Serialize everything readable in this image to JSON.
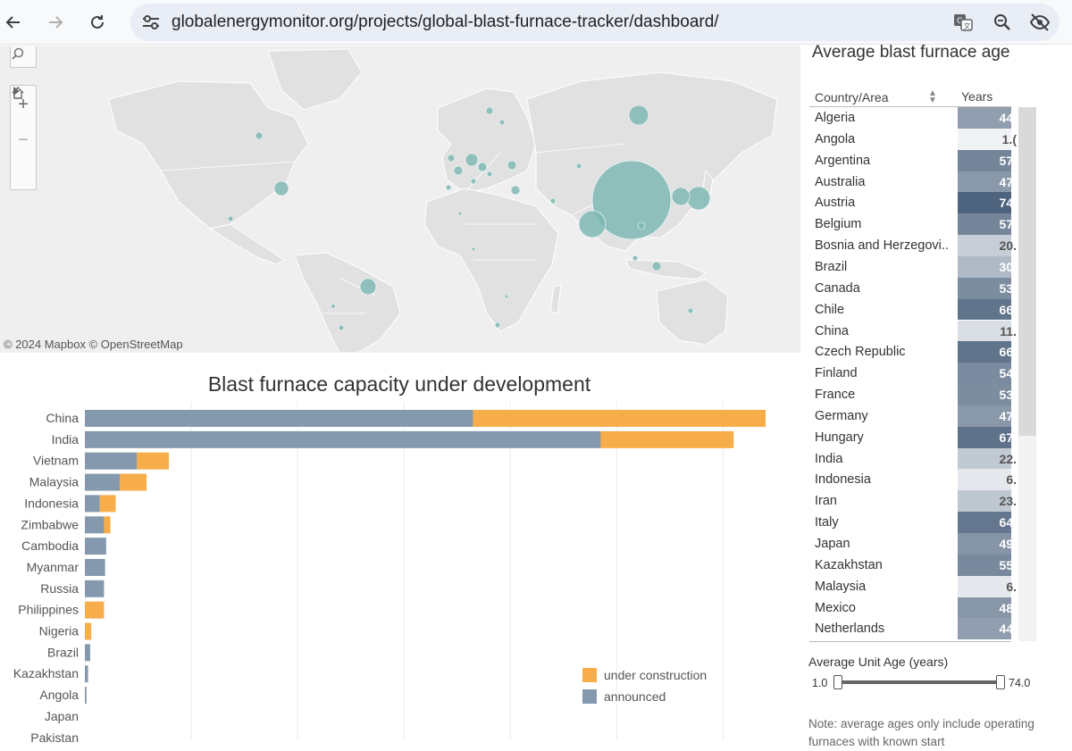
{
  "browser": {
    "url": "globalenergymonitor.org/projects/global-blast-furnace-tracker/dashboard/"
  },
  "map": {
    "attribution": "© 2024 Mapbox  © OpenStreetMap",
    "bubble_color": "#7fb8b4",
    "land_color": "#e1e1e1"
  },
  "chart": {
    "title": "Blast furnace capacity under development",
    "legend": [
      {
        "label": "under construction",
        "color": "#f7ad4a"
      },
      {
        "label": "announced",
        "color": "#8499ae"
      }
    ]
  },
  "chart_data": {
    "type": "bar",
    "orientation": "horizontal",
    "stacked": true,
    "title": "Blast furnace capacity under development",
    "categories": [
      "China",
      "India",
      "Vietnam",
      "Malaysia",
      "Indonesia",
      "Zimbabwe",
      "Cambodia",
      "Myanmar",
      "Russia",
      "Philippines",
      "Nigeria",
      "Brazil",
      "Kazakhstan",
      "Angola",
      "Japan",
      "Pakistan"
    ],
    "series": [
      {
        "name": "announced",
        "color": "#8499ae",
        "values": [
          36.5,
          48.5,
          4.9,
          3.3,
          1.4,
          1.8,
          2.0,
          1.9,
          1.8,
          0.0,
          0.0,
          0.5,
          0.3,
          0.15,
          0.0,
          0.0
        ]
      },
      {
        "name": "under construction",
        "color": "#f7ad4a",
        "values": [
          27.5,
          12.5,
          3.0,
          2.5,
          1.5,
          0.6,
          0.0,
          0.0,
          0.0,
          1.8,
          0.6,
          0.0,
          0.0,
          0.0,
          0.0,
          0.0
        ]
      }
    ],
    "xlim": [
      0,
      64
    ],
    "grid": true,
    "legend_position": "bottom-right"
  },
  "age_panel": {
    "title": "Average blast furnace age",
    "col_country": "Country/Area",
    "col_years": "Years",
    "rows": [
      {
        "country": "Algeria",
        "years": "44."
      },
      {
        "country": "Angola",
        "years": "1.("
      },
      {
        "country": "Argentina",
        "years": "57."
      },
      {
        "country": "Australia",
        "years": "47."
      },
      {
        "country": "Austria",
        "years": "74."
      },
      {
        "country": "Belgium",
        "years": "57."
      },
      {
        "country": "Bosnia and Herzegovi..",
        "years": "20."
      },
      {
        "country": "Brazil",
        "years": "30."
      },
      {
        "country": "Canada",
        "years": "53."
      },
      {
        "country": "Chile",
        "years": "66."
      },
      {
        "country": "China",
        "years": "11."
      },
      {
        "country": "Czech Republic",
        "years": "66."
      },
      {
        "country": "Finland",
        "years": "54."
      },
      {
        "country": "France",
        "years": "53."
      },
      {
        "country": "Germany",
        "years": "47."
      },
      {
        "country": "Hungary",
        "years": "67."
      },
      {
        "country": "India",
        "years": "22."
      },
      {
        "country": "Indonesia",
        "years": "6."
      },
      {
        "country": "Iran",
        "years": "23."
      },
      {
        "country": "Italy",
        "years": "64."
      },
      {
        "country": "Japan",
        "years": "49."
      },
      {
        "country": "Kazakhstan",
        "years": "55."
      },
      {
        "country": "Malaysia",
        "years": "6."
      },
      {
        "country": "Mexico",
        "years": "48."
      },
      {
        "country": "Netherlands",
        "years": "44."
      }
    ],
    "age_values": [
      44,
      1,
      57,
      47,
      74,
      57,
      20,
      30,
      53,
      66,
      11,
      66,
      54,
      53,
      47,
      67,
      22,
      6,
      23,
      64,
      49,
      55,
      6,
      48,
      44
    ],
    "slider_label": "Average Unit Age (years)",
    "slider_min": "1.0",
    "slider_max": "74.0",
    "note": "Note: average ages only include operating furnaces with known start"
  }
}
